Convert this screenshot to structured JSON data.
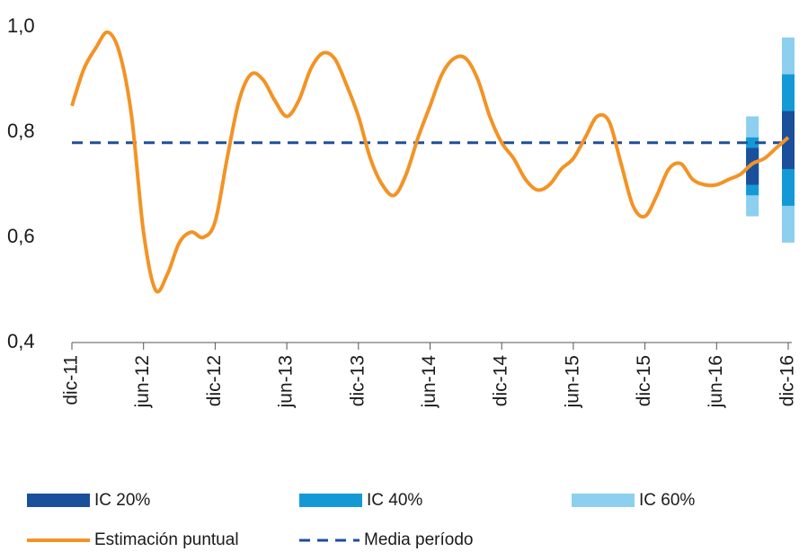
{
  "chart_data": {
    "type": "line",
    "categories": [
      "dic-11",
      null,
      null,
      null,
      null,
      null,
      "jun-12",
      null,
      null,
      null,
      null,
      null,
      "dic-12",
      null,
      null,
      null,
      null,
      null,
      "jun-13",
      null,
      null,
      null,
      null,
      null,
      "dic-13",
      null,
      null,
      null,
      null,
      null,
      "jun-14",
      null,
      null,
      null,
      null,
      null,
      "dic-14",
      null,
      null,
      null,
      null,
      null,
      "jun-15",
      null,
      null,
      null,
      null,
      null,
      "dic-15",
      null,
      null,
      null,
      null,
      null,
      "jun-16",
      null,
      null,
      null,
      null,
      null,
      "dic-16"
    ],
    "series": [
      {
        "name": "Estimación puntual",
        "color": "#f39325",
        "values": [
          0.85,
          0.92,
          0.96,
          0.99,
          0.95,
          0.83,
          0.61,
          0.5,
          0.53,
          0.59,
          0.61,
          0.6,
          0.63,
          0.75,
          0.86,
          0.91,
          0.9,
          0.86,
          0.83,
          0.86,
          0.92,
          0.95,
          0.94,
          0.89,
          0.83,
          0.75,
          0.7,
          0.68,
          0.72,
          0.79,
          0.85,
          0.91,
          0.94,
          0.94,
          0.9,
          0.83,
          0.78,
          0.75,
          0.71,
          0.69,
          0.7,
          0.73,
          0.75,
          0.79,
          0.83,
          0.82,
          0.74,
          0.66,
          0.64,
          0.68,
          0.73,
          0.74,
          0.71,
          0.7,
          0.7,
          0.71,
          0.72,
          0.74,
          0.75,
          0.77,
          0.79
        ]
      }
    ],
    "mean": {
      "name": "Media período",
      "color": "#1f4e9c",
      "value": 0.78
    },
    "bands": [
      {
        "name": "IC 60%",
        "color": "#8ccfee",
        "low": [
          null,
          null,
          null,
          null,
          null,
          null,
          null,
          null,
          null,
          null,
          null,
          null,
          null,
          null,
          null,
          null,
          null,
          null,
          null,
          null,
          null,
          null,
          null,
          null,
          null,
          null,
          null,
          null,
          null,
          null,
          null,
          null,
          null,
          null,
          null,
          null,
          null,
          null,
          null,
          null,
          null,
          null,
          null,
          null,
          null,
          null,
          null,
          null,
          null,
          null,
          null,
          null,
          null,
          null,
          null,
          null,
          null,
          0.64,
          null,
          null,
          0.59
        ],
        "high": [
          null,
          null,
          null,
          null,
          null,
          null,
          null,
          null,
          null,
          null,
          null,
          null,
          null,
          null,
          null,
          null,
          null,
          null,
          null,
          null,
          null,
          null,
          null,
          null,
          null,
          null,
          null,
          null,
          null,
          null,
          null,
          null,
          null,
          null,
          null,
          null,
          null,
          null,
          null,
          null,
          null,
          null,
          null,
          null,
          null,
          null,
          null,
          null,
          null,
          null,
          null,
          null,
          null,
          null,
          null,
          null,
          null,
          0.83,
          null,
          null,
          0.98
        ]
      },
      {
        "name": "IC 40%",
        "color": "#139ad6",
        "low": [
          null,
          null,
          null,
          null,
          null,
          null,
          null,
          null,
          null,
          null,
          null,
          null,
          null,
          null,
          null,
          null,
          null,
          null,
          null,
          null,
          null,
          null,
          null,
          null,
          null,
          null,
          null,
          null,
          null,
          null,
          null,
          null,
          null,
          null,
          null,
          null,
          null,
          null,
          null,
          null,
          null,
          null,
          null,
          null,
          null,
          null,
          null,
          null,
          null,
          null,
          null,
          null,
          null,
          null,
          null,
          null,
          null,
          0.68,
          null,
          null,
          0.66
        ],
        "high": [
          null,
          null,
          null,
          null,
          null,
          null,
          null,
          null,
          null,
          null,
          null,
          null,
          null,
          null,
          null,
          null,
          null,
          null,
          null,
          null,
          null,
          null,
          null,
          null,
          null,
          null,
          null,
          null,
          null,
          null,
          null,
          null,
          null,
          null,
          null,
          null,
          null,
          null,
          null,
          null,
          null,
          null,
          null,
          null,
          null,
          null,
          null,
          null,
          null,
          null,
          null,
          null,
          null,
          null,
          null,
          null,
          null,
          0.79,
          null,
          null,
          0.91
        ]
      },
      {
        "name": "IC 20%",
        "color": "#1a4f9c",
        "low": [
          null,
          null,
          null,
          null,
          null,
          null,
          null,
          null,
          null,
          null,
          null,
          null,
          null,
          null,
          null,
          null,
          null,
          null,
          null,
          null,
          null,
          null,
          null,
          null,
          null,
          null,
          null,
          null,
          null,
          null,
          null,
          null,
          null,
          null,
          null,
          null,
          null,
          null,
          null,
          null,
          null,
          null,
          null,
          null,
          null,
          null,
          null,
          null,
          null,
          null,
          null,
          null,
          null,
          null,
          null,
          null,
          null,
          0.7,
          null,
          null,
          0.73
        ],
        "high": [
          null,
          null,
          null,
          null,
          null,
          null,
          null,
          null,
          null,
          null,
          null,
          null,
          null,
          null,
          null,
          null,
          null,
          null,
          null,
          null,
          null,
          null,
          null,
          null,
          null,
          null,
          null,
          null,
          null,
          null,
          null,
          null,
          null,
          null,
          null,
          null,
          null,
          null,
          null,
          null,
          null,
          null,
          null,
          null,
          null,
          null,
          null,
          null,
          null,
          null,
          null,
          null,
          null,
          null,
          null,
          null,
          null,
          0.77,
          null,
          null,
          0.84
        ]
      }
    ],
    "ylim": [
      0.4,
      1.0
    ],
    "yticks": [
      {
        "value": 1.0,
        "label": "1,0"
      },
      {
        "value": 0.8,
        "label": "0,8"
      },
      {
        "value": 0.6,
        "label": "0,6"
      },
      {
        "value": 0.4,
        "label": "0,4"
      }
    ],
    "grid": false
  }
}
